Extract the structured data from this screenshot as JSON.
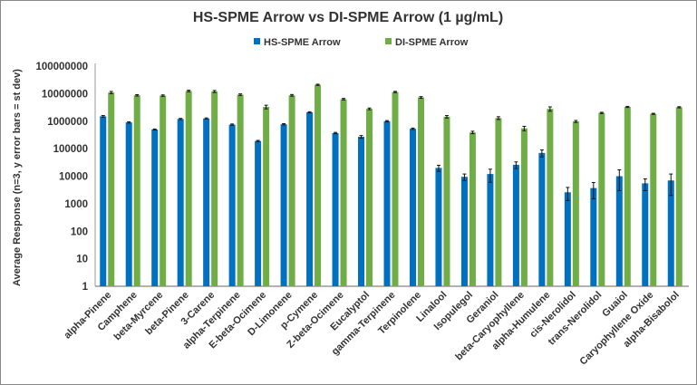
{
  "chart_data": {
    "type": "bar",
    "title": "HS-SPME Arrow vs DI-SPME Arrow (1 µg/mL)",
    "xlabel": "",
    "ylabel": "Average Response (n=3, y error bars = st dev)",
    "yscale": "log",
    "ylim": [
      1,
      100000000
    ],
    "yticks": [
      "1",
      "10",
      "100",
      "1000",
      "10000",
      "100000",
      "1000000",
      "10000000",
      "100000000"
    ],
    "grid": false,
    "legend": "top",
    "categories": [
      "alpha-Pinene",
      "Camphene",
      "beta-Myrcene",
      "beta-Pinene",
      "3-Carene",
      "alpha-Terpinene",
      "E-beta-Ocimene",
      "D-Limonene",
      "p-Cymene",
      "Z-beta-Ocimene",
      "Eucalyptol",
      "gamma-Terpinene",
      "Terpinolene",
      "Linalool",
      "Isopulegol",
      "Geraniol",
      "beta-Caryophyllene",
      "alpha-Humulene",
      "cis-Nerolidol",
      "trans-Nerolidol",
      "Guaiol",
      "Caryophyllene Oxide",
      "alpha-Bisabolol"
    ],
    "series": [
      {
        "name": "HS-SPME Arrow",
        "color": "#0070c0",
        "values": [
          1500000,
          900000,
          500000,
          1200000,
          1250000,
          750000,
          190000,
          770000,
          2100000,
          370000,
          270000,
          1000000,
          530000,
          20000,
          9500,
          12000,
          26000,
          70000,
          2600,
          3700,
          10000,
          5500,
          7000
        ],
        "errors": [
          100000,
          50000,
          20000,
          60000,
          60000,
          40000,
          10000,
          40000,
          100000,
          20000,
          30000,
          50000,
          30000,
          5000,
          2500,
          6000,
          7000,
          20000,
          1300,
          2200,
          7000,
          2500,
          5000
        ]
      },
      {
        "name": "DI-SPME Arrow",
        "color": "#70ad47",
        "values": [
          11000000,
          8700000,
          8500000,
          12500000,
          12000000,
          9200000,
          3300000,
          8700000,
          21000000,
          6300000,
          2800000,
          11500000,
          7300000,
          1450000,
          390000,
          1300000,
          550000,
          2800000,
          980000,
          2000000,
          3300000,
          1850000,
          3200000
        ],
        "errors": [
          1000000,
          500000,
          500000,
          800000,
          1000000,
          600000,
          500000,
          600000,
          1000000,
          400000,
          200000,
          600000,
          500000,
          150000,
          40000,
          150000,
          100000,
          500000,
          80000,
          100000,
          150000,
          80000,
          150000
        ]
      }
    ]
  }
}
